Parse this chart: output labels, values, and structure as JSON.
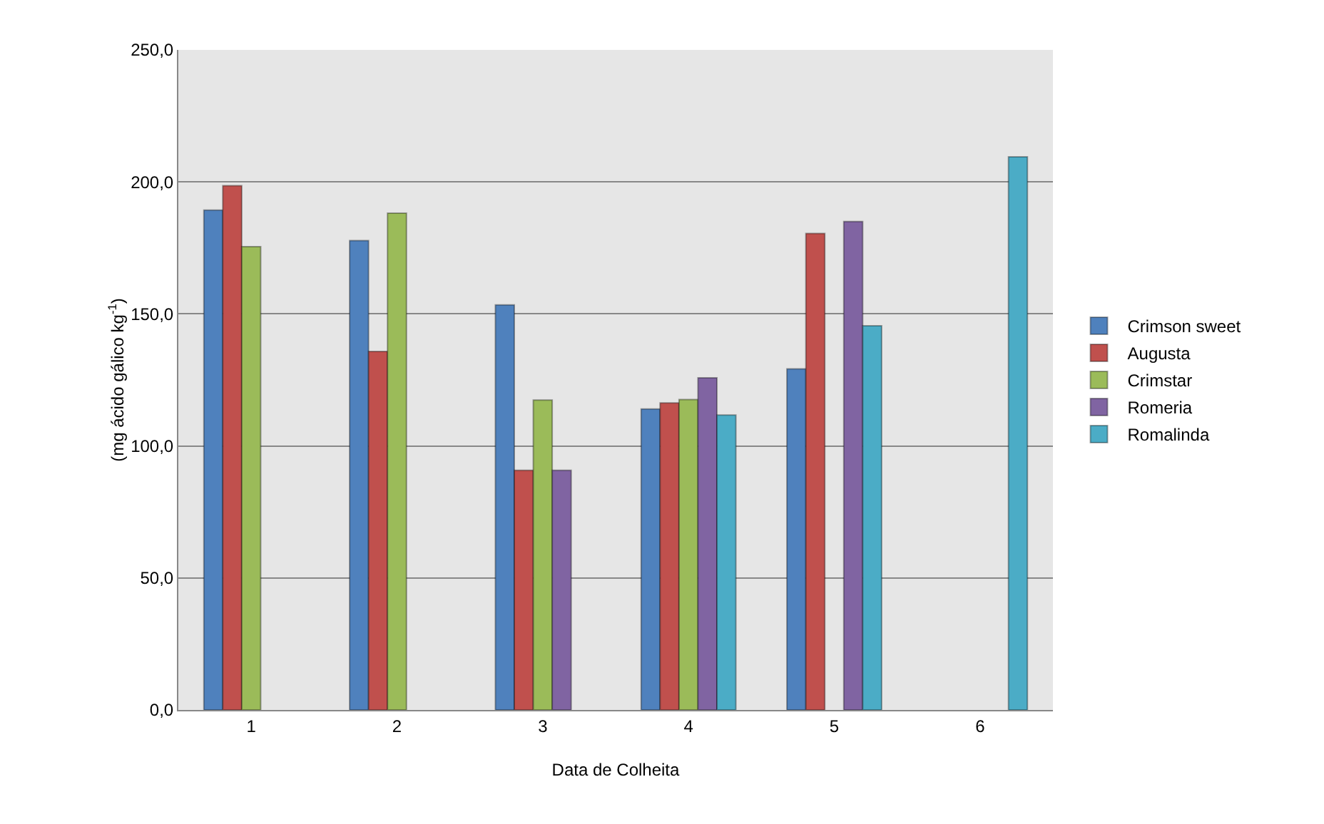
{
  "chart_data": {
    "type": "bar",
    "xlabel": "Data de Colheita",
    "ylabel": "(mg ácido gálico kg$^{-1}$)",
    "categories": [
      "1",
      "2",
      "3",
      "4",
      "5",
      "6"
    ],
    "series": [
      {
        "name": "Crimson sweet",
        "color": "#4f81bd",
        "values": [
          189.3,
          177.8,
          153.4,
          114,
          129.2,
          null
        ]
      },
      {
        "name": "Augusta",
        "color": "#c0504d",
        "values": [
          198.6,
          135.8,
          90.8,
          116.3,
          180.5,
          null
        ]
      },
      {
        "name": "Crimstar",
        "color": "#9bbb59",
        "values": [
          175.5,
          188.2,
          117.4,
          117.6,
          null,
          null
        ]
      },
      {
        "name": "Romeria",
        "color": "#8064a2",
        "values": [
          null,
          null,
          90.8,
          125.8,
          185,
          null
        ]
      },
      {
        "name": "Romalinda",
        "color": "#4bacc6",
        "values": [
          null,
          null,
          null,
          111.7,
          145.5,
          209.5
        ]
      }
    ],
    "ylim": [
      0,
      250
    ],
    "yticks": [
      {
        "value": 0,
        "label": "0,0"
      },
      {
        "value": 50,
        "label": "50,0"
      },
      {
        "value": 100,
        "label": "100,0"
      },
      {
        "value": 150,
        "label": "150,0"
      },
      {
        "value": 200,
        "label": "200,0"
      },
      {
        "value": 250,
        "label": "250,0"
      }
    ],
    "grid": "y",
    "legend": "right"
  }
}
